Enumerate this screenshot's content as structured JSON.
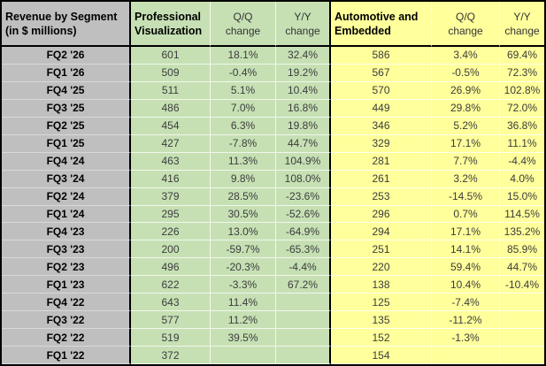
{
  "table": {
    "corner": {
      "line1": "Revenue by Segment",
      "line2": "(in $ millions)"
    },
    "green_section": {
      "title_line1": "Professional",
      "title_line2": "Visualization",
      "qq_line1": "Q/Q",
      "qq_line2": "change",
      "yy_line1": "Y/Y",
      "yy_line2": "change"
    },
    "yellow_section": {
      "title_line1": "Automotive and",
      "title_line2": "Embedded",
      "qq_line1": "Q/Q",
      "qq_line2": "change",
      "yy_line1": "Y/Y",
      "yy_line2": "change"
    },
    "colors": {
      "header_gray": "#bfbfbf",
      "green": "#c6e0b4",
      "yellow": "#ffff9c",
      "border_black": "#000000",
      "value_text": "#3c3c3c",
      "label_text": "#000000"
    }
  },
  "chart_data": {
    "type": "table",
    "title": "Revenue by Segment (in $ millions)",
    "columns": [
      "Quarter",
      "Professional Visualization",
      "Q/Q change",
      "Y/Y change",
      "Automotive and Embedded",
      "Q/Q change",
      "Y/Y change"
    ],
    "rows": [
      [
        "FQ2 '26",
        601,
        "18.1%",
        "32.4%",
        586,
        "3.4%",
        "69.4%"
      ],
      [
        "FQ1 '26",
        509,
        "-0.4%",
        "19.2%",
        567,
        "-0.5%",
        "72.3%"
      ],
      [
        "FQ4 '25",
        511,
        "5.1%",
        "10.4%",
        570,
        "26.9%",
        "102.8%"
      ],
      [
        "FQ3 '25",
        486,
        "7.0%",
        "16.8%",
        449,
        "29.8%",
        "72.0%"
      ],
      [
        "FQ2 '25",
        454,
        "6.3%",
        "19.8%",
        346,
        "5.2%",
        "36.8%"
      ],
      [
        "FQ1 '25",
        427,
        "-7.8%",
        "44.7%",
        329,
        "17.1%",
        "11.1%"
      ],
      [
        "FQ4 '24",
        463,
        "11.3%",
        "104.9%",
        281,
        "7.7%",
        "-4.4%"
      ],
      [
        "FQ3 '24",
        416,
        "9.8%",
        "108.0%",
        261,
        "3.2%",
        "4.0%"
      ],
      [
        "FQ2 '24",
        379,
        "28.5%",
        "-23.6%",
        253,
        "-14.5%",
        "15.0%"
      ],
      [
        "FQ1 '24",
        295,
        "30.5%",
        "-52.6%",
        296,
        "0.7%",
        "114.5%"
      ],
      [
        "FQ4 '23",
        226,
        "13.0%",
        "-64.9%",
        294,
        "17.1%",
        "135.2%"
      ],
      [
        "FQ3 '23",
        200,
        "-59.7%",
        "-65.3%",
        251,
        "14.1%",
        "85.9%"
      ],
      [
        "FQ2 '23",
        496,
        "-20.3%",
        "-4.4%",
        220,
        "59.4%",
        "44.7%"
      ],
      [
        "FQ1 '23",
        622,
        "-3.3%",
        "67.2%",
        138,
        "10.4%",
        "-10.4%"
      ],
      [
        "FQ4 '22",
        643,
        "11.4%",
        "",
        125,
        "-7.4%",
        ""
      ],
      [
        "FQ3 '22",
        577,
        "11.2%",
        "",
        135,
        "-11.2%",
        ""
      ],
      [
        "FQ2 '22",
        519,
        "39.5%",
        "",
        152,
        "-1.3%",
        ""
      ],
      [
        "FQ1 '22",
        372,
        "",
        "",
        154,
        "",
        ""
      ]
    ]
  }
}
